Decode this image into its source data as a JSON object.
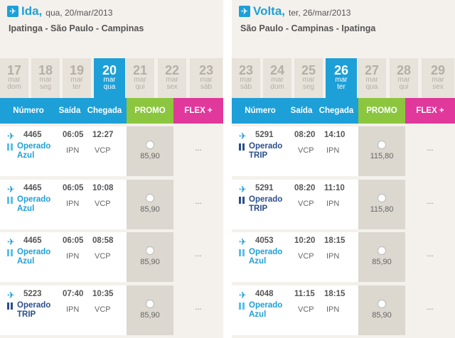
{
  "left": {
    "direction": "Ida,",
    "date": "qua, 20/mar/2013",
    "route": "Ipatinga - São Paulo - Campinas",
    "dates": [
      {
        "day": "17",
        "mon": "mar",
        "wd": "dom"
      },
      {
        "day": "18",
        "mon": "mar",
        "wd": "seg"
      },
      {
        "day": "19",
        "mon": "mar",
        "wd": "ter"
      },
      {
        "day": "20",
        "mon": "mar",
        "wd": "qua"
      },
      {
        "day": "21",
        "mon": "mar",
        "wd": "qui"
      },
      {
        "day": "22",
        "mon": "mar",
        "wd": "sex"
      },
      {
        "day": "23",
        "mon": "mar",
        "wd": "sáb"
      }
    ],
    "selected_date": "20",
    "headers": {
      "numero": "Número",
      "saida": "Saída",
      "chegada": "Chegada",
      "promo": "PROMO",
      "flex": "FLEX +"
    },
    "flights": [
      {
        "number": "4465",
        "dep": "06:05",
        "arr": "12:27",
        "orig": "IPN",
        "dest": "VCP",
        "op_line1": "Operado",
        "op_line2": "Azul",
        "op": "azul",
        "price": "85,90",
        "flex": "..."
      },
      {
        "number": "4465",
        "dep": "06:05",
        "arr": "10:08",
        "orig": "IPN",
        "dest": "VCP",
        "op_line1": "Operado",
        "op_line2": "Azul",
        "op": "azul",
        "price": "85,90",
        "flex": "..."
      },
      {
        "number": "4465",
        "dep": "06:05",
        "arr": "08:58",
        "orig": "IPN",
        "dest": "VCP",
        "op_line1": "Operado",
        "op_line2": "Azul",
        "op": "azul",
        "price": "85,90",
        "flex": "..."
      },
      {
        "number": "5223",
        "dep": "07:40",
        "arr": "10:35",
        "orig": "IPN",
        "dest": "VCP",
        "op_line1": "Operado",
        "op_line2": "TRIP",
        "op": "trip",
        "price": "85,90",
        "flex": "..."
      }
    ]
  },
  "right": {
    "direction": "Volta,",
    "date": "ter, 26/mar/2013",
    "route": "São Paulo - Campinas - Ipatinga",
    "dates": [
      {
        "day": "23",
        "mon": "mar",
        "wd": "sáb"
      },
      {
        "day": "24",
        "mon": "mar",
        "wd": "dom"
      },
      {
        "day": "25",
        "mon": "mar",
        "wd": "seg"
      },
      {
        "day": "26",
        "mon": "mar",
        "wd": "ter"
      },
      {
        "day": "27",
        "mon": "mar",
        "wd": "qua"
      },
      {
        "day": "28",
        "mon": "mar",
        "wd": "qui"
      },
      {
        "day": "29",
        "mon": "mar",
        "wd": "sex"
      }
    ],
    "selected_date": "26",
    "headers": {
      "numero": "Número",
      "saida": "Saída",
      "chegada": "Chegada",
      "promo": "PROMO",
      "flex": "FLEX +"
    },
    "flights": [
      {
        "number": "5291",
        "dep": "08:20",
        "arr": "14:10",
        "orig": "VCP",
        "dest": "IPN",
        "op_line1": "Operado",
        "op_line2": "TRIP",
        "op": "trip",
        "price": "115,80",
        "flex": "..."
      },
      {
        "number": "5291",
        "dep": "08:20",
        "arr": "11:10",
        "orig": "VCP",
        "dest": "IPN",
        "op_line1": "Operado",
        "op_line2": "TRIP",
        "op": "trip",
        "price": "115,80",
        "flex": "..."
      },
      {
        "number": "4053",
        "dep": "10:20",
        "arr": "18:15",
        "orig": "VCP",
        "dest": "IPN",
        "op_line1": "Operado",
        "op_line2": "Azul",
        "op": "azul",
        "price": "85,90",
        "flex": "..."
      },
      {
        "number": "4048",
        "dep": "11:15",
        "arr": "18:15",
        "orig": "VCP",
        "dest": "IPN",
        "op_line1": "Operado",
        "op_line2": "Azul",
        "op": "azul",
        "price": "85,90",
        "flex": "..."
      }
    ]
  },
  "icons": {
    "plane": "airplane-icon",
    "operator": "operator-logo-icon",
    "radio": "radio-button"
  },
  "colors": {
    "accent": "#1da0d8",
    "promo": "#8cc63f",
    "flex": "#e0389b",
    "trip": "#2a4e8c"
  }
}
